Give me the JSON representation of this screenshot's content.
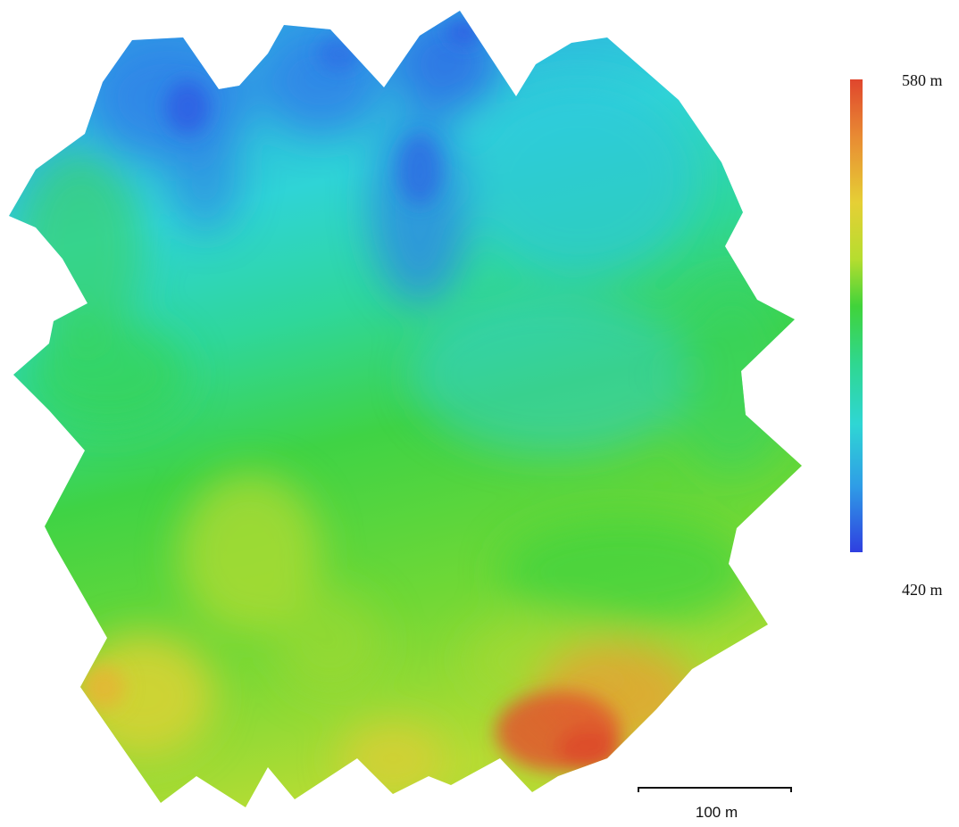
{
  "legend": {
    "max_label": "580 m",
    "min_label": "420 m",
    "max_value": 580,
    "min_value": 420,
    "unit": "m",
    "colors": [
      "#2f3fe0",
      "#2f9de6",
      "#2fd6d4",
      "#2fd78f",
      "#40d33a",
      "#b6dd2f",
      "#e6cf35",
      "#e88a33",
      "#e0462d"
    ]
  },
  "scale_bar": {
    "label": "100 m",
    "distance": 100,
    "unit": "m"
  }
}
